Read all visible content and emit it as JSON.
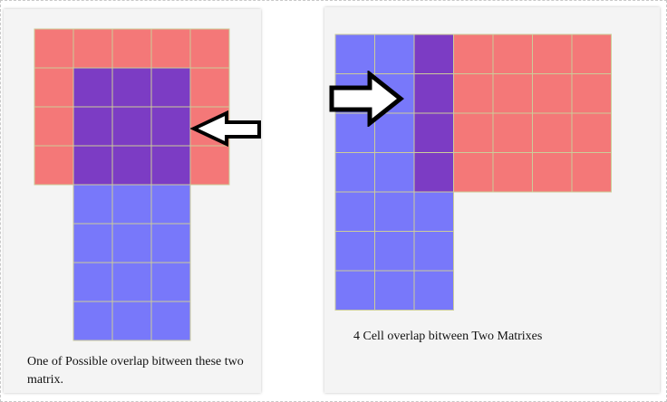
{
  "colors": {
    "red_cell": "#f47878",
    "blue_cell": "#7878fa",
    "overlap_cell": "#7c3cc4",
    "cell_border": "#cccc99",
    "arrow_fill": "#ffffff",
    "arrow_stroke": "#000000"
  },
  "left_panel": {
    "caption": "One of Possible overlap bitween these two matrix.",
    "red_matrix": {
      "rows": 4,
      "cols": 5
    },
    "blue_matrix": {
      "rows": 7,
      "cols": 3
    },
    "overlap_cells": 9,
    "arrow_icon": "left-arrow-icon"
  },
  "right_panel": {
    "caption": "4 Cell overlap bitween Two Matrixes",
    "red_matrix": {
      "rows": 4,
      "cols": 5
    },
    "blue_matrix": {
      "rows": 7,
      "cols": 3
    },
    "overlap_cells": 4,
    "arrow_icon": "right-arrow-icon"
  }
}
